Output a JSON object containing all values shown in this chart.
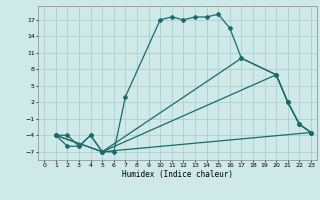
{
  "title": "",
  "xlabel": "Humidex (Indice chaleur)",
  "background_color": "#cfe8e8",
  "line_color": "#1a6b6b",
  "grid_color": "#aecfcf",
  "xlim": [
    -0.5,
    23.5
  ],
  "ylim": [
    -8.5,
    19.5
  ],
  "yticks": [
    -7,
    -4,
    -1,
    2,
    5,
    8,
    11,
    14,
    17
  ],
  "xticks": [
    0,
    1,
    2,
    3,
    4,
    5,
    6,
    7,
    8,
    9,
    10,
    11,
    12,
    13,
    14,
    15,
    16,
    17,
    18,
    19,
    20,
    21,
    22,
    23
  ],
  "line1_x": [
    1,
    2,
    3,
    4,
    5,
    6,
    7,
    10,
    11,
    12,
    13,
    14,
    15,
    16,
    17,
    20,
    21,
    22,
    23
  ],
  "line1_y": [
    -4,
    -4,
    -6,
    -4,
    -7,
    -7,
    3,
    17,
    17.5,
    17,
    17.5,
    17.5,
    18,
    15.5,
    10,
    7,
    2,
    -2,
    -3.5
  ],
  "line2_x": [
    1,
    2,
    3,
    4,
    5,
    17,
    20,
    21,
    22,
    23
  ],
  "line2_y": [
    -4,
    -6,
    -6,
    -4,
    -7,
    10,
    7,
    2,
    -2,
    -3.5
  ],
  "line3_x": [
    1,
    5,
    20,
    21,
    22,
    23
  ],
  "line3_y": [
    -4,
    -7,
    7,
    2,
    -2,
    -3.5
  ],
  "line4_x": [
    1,
    5,
    23
  ],
  "line4_y": [
    -4,
    -7,
    -3.5
  ]
}
